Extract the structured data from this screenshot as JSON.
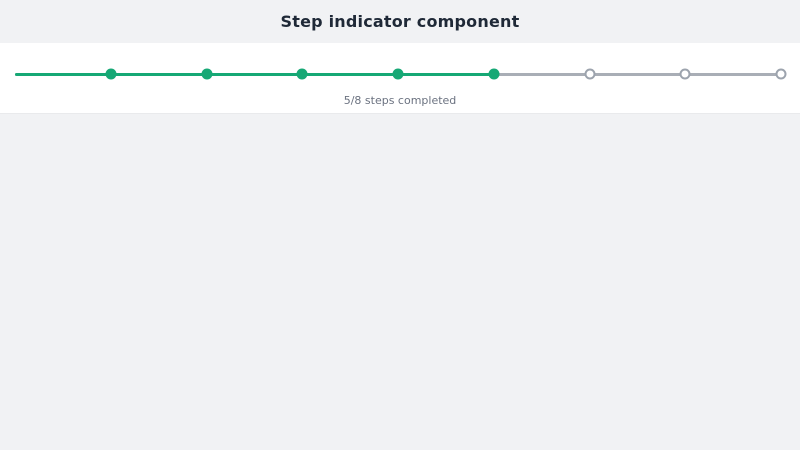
{
  "title": "Step indicator component",
  "step_indicator": {
    "total_steps": 8,
    "completed_steps": 5,
    "caption": "5/8 steps completed",
    "colors": {
      "completed": "#16a875",
      "track": "#a9aeb6",
      "pending_border": "#9ca3ad",
      "page_background": "#f1f2f4",
      "card_background": "#ffffff",
      "title_text": "#1f2937",
      "caption_text": "#6b7280"
    }
  }
}
